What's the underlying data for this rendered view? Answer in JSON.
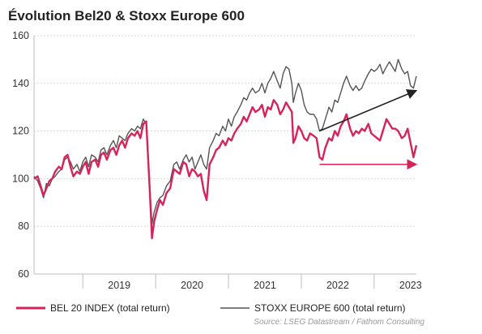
{
  "chart_data": {
    "type": "line",
    "title": "Évolution Bel20 & Stoxx Europe 600",
    "xlabel": "",
    "ylabel": "",
    "ylim": [
      60,
      160
    ],
    "yticks": [
      60,
      80,
      100,
      120,
      140,
      160
    ],
    "xlim": [
      2018.33,
      2023.58
    ],
    "xticks": [
      {
        "label": "2019",
        "x": 2019.0
      },
      {
        "label": "2020",
        "x": 2020.0
      },
      {
        "label": "2021",
        "x": 2021.0
      },
      {
        "label": "2022",
        "x": 2022.0
      },
      {
        "label": "2023",
        "x": 2023.0
      }
    ],
    "grid": true,
    "legend_position": "bottom",
    "source": "Source: LSEG Datastream / Fathom Consulting",
    "series": [
      {
        "name": "BEL 20 INDEX (total return)",
        "color": "#d6245a",
        "points": [
          [
            2018.33,
            100
          ],
          [
            2018.38,
            101
          ],
          [
            2018.42,
            97
          ],
          [
            2018.46,
            93
          ],
          [
            2018.5,
            96
          ],
          [
            2018.54,
            99
          ],
          [
            2018.58,
            100
          ],
          [
            2018.62,
            103
          ],
          [
            2018.67,
            105
          ],
          [
            2018.71,
            104
          ],
          [
            2018.75,
            109
          ],
          [
            2018.79,
            110
          ],
          [
            2018.83,
            105
          ],
          [
            2018.87,
            101
          ],
          [
            2018.92,
            103
          ],
          [
            2018.96,
            102
          ],
          [
            2019.0,
            105
          ],
          [
            2019.04,
            107
          ],
          [
            2019.08,
            102
          ],
          [
            2019.12,
            107
          ],
          [
            2019.17,
            108
          ],
          [
            2019.21,
            105
          ],
          [
            2019.25,
            110
          ],
          [
            2019.29,
            111
          ],
          [
            2019.33,
            108
          ],
          [
            2019.38,
            112
          ],
          [
            2019.42,
            113
          ],
          [
            2019.46,
            110
          ],
          [
            2019.5,
            114
          ],
          [
            2019.54,
            116
          ],
          [
            2019.58,
            113
          ],
          [
            2019.62,
            117
          ],
          [
            2019.67,
            119
          ],
          [
            2019.71,
            118
          ],
          [
            2019.75,
            120
          ],
          [
            2019.79,
            117
          ],
          [
            2019.83,
            123
          ],
          [
            2019.87,
            124
          ],
          [
            2019.89,
            112
          ],
          [
            2019.92,
            95
          ],
          [
            2019.95,
            75
          ],
          [
            2019.98,
            82
          ],
          [
            2020.02,
            87
          ],
          [
            2020.06,
            91
          ],
          [
            2020.1,
            89
          ],
          [
            2020.15,
            94
          ],
          [
            2020.2,
            96
          ],
          [
            2020.25,
            104
          ],
          [
            2020.29,
            103
          ],
          [
            2020.33,
            102
          ],
          [
            2020.38,
            107
          ],
          [
            2020.42,
            106
          ],
          [
            2020.46,
            101
          ],
          [
            2020.5,
            104
          ],
          [
            2020.54,
            103
          ],
          [
            2020.58,
            101
          ],
          [
            2020.62,
            102
          ],
          [
            2020.66,
            95
          ],
          [
            2020.7,
            91
          ],
          [
            2020.74,
            106
          ],
          [
            2020.79,
            109
          ],
          [
            2020.83,
            112
          ],
          [
            2020.87,
            113
          ],
          [
            2020.92,
            116
          ],
          [
            2020.96,
            114
          ],
          [
            2021.0,
            117
          ],
          [
            2021.04,
            116
          ],
          [
            2021.08,
            119
          ],
          [
            2021.12,
            121
          ],
          [
            2021.17,
            123
          ],
          [
            2021.21,
            126
          ],
          [
            2021.25,
            124
          ],
          [
            2021.29,
            127
          ],
          [
            2021.33,
            130
          ],
          [
            2021.37,
            128
          ],
          [
            2021.42,
            129
          ],
          [
            2021.46,
            131
          ],
          [
            2021.5,
            126
          ],
          [
            2021.54,
            130
          ],
          [
            2021.58,
            129
          ],
          [
            2021.62,
            133
          ],
          [
            2021.67,
            131
          ],
          [
            2021.71,
            127
          ],
          [
            2021.75,
            129
          ],
          [
            2021.79,
            132
          ],
          [
            2021.83,
            130
          ],
          [
            2021.87,
            128
          ],
          [
            2021.89,
            115
          ],
          [
            2021.92,
            117
          ],
          [
            2021.96,
            122
          ],
          [
            2022.0,
            120
          ],
          [
            2022.04,
            117
          ],
          [
            2022.08,
            116
          ],
          [
            2022.12,
            119
          ],
          [
            2022.17,
            118
          ],
          [
            2022.21,
            117
          ],
          [
            2022.25,
            109
          ],
          [
            2022.29,
            108
          ],
          [
            2022.33,
            113
          ],
          [
            2022.38,
            117
          ],
          [
            2022.42,
            116
          ],
          [
            2022.46,
            120
          ],
          [
            2022.5,
            118
          ],
          [
            2022.54,
            122
          ],
          [
            2022.58,
            124
          ],
          [
            2022.62,
            127
          ],
          [
            2022.67,
            121
          ],
          [
            2022.71,
            118
          ],
          [
            2022.75,
            120
          ],
          [
            2022.79,
            119
          ],
          [
            2022.83,
            121
          ],
          [
            2022.87,
            120
          ],
          [
            2022.92,
            123
          ],
          [
            2022.96,
            119
          ],
          [
            2023.0,
            118
          ],
          [
            2023.04,
            117
          ],
          [
            2023.08,
            116
          ],
          [
            2023.12,
            120
          ],
          [
            2023.17,
            125
          ],
          [
            2023.21,
            123
          ],
          [
            2023.25,
            121
          ],
          [
            2023.29,
            121
          ],
          [
            2023.33,
            120
          ],
          [
            2023.38,
            117
          ],
          [
            2023.42,
            118
          ],
          [
            2023.46,
            121
          ],
          [
            2023.5,
            115
          ],
          [
            2023.54,
            109
          ],
          [
            2023.58,
            114
          ]
        ]
      },
      {
        "name": "STOXX EUROPE 600 (total return)",
        "color": "#555555",
        "points": [
          [
            2018.33,
            101
          ],
          [
            2018.38,
            99
          ],
          [
            2018.42,
            96
          ],
          [
            2018.46,
            92
          ],
          [
            2018.5,
            98
          ],
          [
            2018.54,
            97
          ],
          [
            2018.58,
            100
          ],
          [
            2018.62,
            101
          ],
          [
            2018.67,
            103
          ],
          [
            2018.71,
            104
          ],
          [
            2018.75,
            108
          ],
          [
            2018.79,
            109
          ],
          [
            2018.83,
            107
          ],
          [
            2018.87,
            104
          ],
          [
            2018.92,
            106
          ],
          [
            2018.96,
            103
          ],
          [
            2019.0,
            107
          ],
          [
            2019.04,
            109
          ],
          [
            2019.08,
            105
          ],
          [
            2019.12,
            110
          ],
          [
            2019.17,
            109
          ],
          [
            2019.21,
            107
          ],
          [
            2019.25,
            112
          ],
          [
            2019.29,
            113
          ],
          [
            2019.33,
            110
          ],
          [
            2019.38,
            114
          ],
          [
            2019.42,
            116
          ],
          [
            2019.46,
            113
          ],
          [
            2019.5,
            118
          ],
          [
            2019.54,
            117
          ],
          [
            2019.58,
            116
          ],
          [
            2019.62,
            119
          ],
          [
            2019.67,
            121
          ],
          [
            2019.71,
            120
          ],
          [
            2019.75,
            122
          ],
          [
            2019.79,
            121
          ],
          [
            2019.83,
            125
          ],
          [
            2019.87,
            123
          ],
          [
            2019.89,
            114
          ],
          [
            2019.92,
            97
          ],
          [
            2019.95,
            81
          ],
          [
            2019.98,
            86
          ],
          [
            2020.02,
            90
          ],
          [
            2020.06,
            92
          ],
          [
            2020.1,
            93
          ],
          [
            2020.15,
            97
          ],
          [
            2020.2,
            99
          ],
          [
            2020.25,
            106
          ],
          [
            2020.29,
            107
          ],
          [
            2020.33,
            104
          ],
          [
            2020.38,
            108
          ],
          [
            2020.42,
            110
          ],
          [
            2020.46,
            107
          ],
          [
            2020.5,
            109
          ],
          [
            2020.54,
            104
          ],
          [
            2020.58,
            107
          ],
          [
            2020.62,
            110
          ],
          [
            2020.66,
            106
          ],
          [
            2020.7,
            104
          ],
          [
            2020.74,
            113
          ],
          [
            2020.79,
            116
          ],
          [
            2020.83,
            119
          ],
          [
            2020.87,
            118
          ],
          [
            2020.92,
            122
          ],
          [
            2020.96,
            120
          ],
          [
            2021.0,
            125
          ],
          [
            2021.04,
            122
          ],
          [
            2021.08,
            126
          ],
          [
            2021.12,
            128
          ],
          [
            2021.17,
            131
          ],
          [
            2021.21,
            134
          ],
          [
            2021.25,
            133
          ],
          [
            2021.29,
            136
          ],
          [
            2021.33,
            138
          ],
          [
            2021.37,
            136
          ],
          [
            2021.42,
            137
          ],
          [
            2021.46,
            140
          ],
          [
            2021.5,
            136
          ],
          [
            2021.54,
            140
          ],
          [
            2021.58,
            142
          ],
          [
            2021.62,
            145
          ],
          [
            2021.67,
            141
          ],
          [
            2021.71,
            138
          ],
          [
            2021.75,
            144
          ],
          [
            2021.79,
            147
          ],
          [
            2021.83,
            146
          ],
          [
            2021.87,
            140
          ],
          [
            2021.89,
            132
          ],
          [
            2021.92,
            136
          ],
          [
            2021.96,
            140
          ],
          [
            2022.0,
            137
          ],
          [
            2022.04,
            131
          ],
          [
            2022.08,
            128
          ],
          [
            2022.12,
            127
          ],
          [
            2022.17,
            127
          ],
          [
            2022.21,
            125
          ],
          [
            2022.25,
            120
          ],
          [
            2022.29,
            121
          ],
          [
            2022.33,
            125
          ],
          [
            2022.38,
            130
          ],
          [
            2022.42,
            128
          ],
          [
            2022.46,
            133
          ],
          [
            2022.5,
            132
          ],
          [
            2022.54,
            136
          ],
          [
            2022.58,
            140
          ],
          [
            2022.62,
            143
          ],
          [
            2022.67,
            139
          ],
          [
            2022.71,
            137
          ],
          [
            2022.75,
            139
          ],
          [
            2022.79,
            137
          ],
          [
            2022.83,
            138
          ],
          [
            2022.87,
            141
          ],
          [
            2022.92,
            144
          ],
          [
            2022.96,
            146
          ],
          [
            2023.0,
            145
          ],
          [
            2023.04,
            146
          ],
          [
            2023.08,
            148
          ],
          [
            2023.12,
            144
          ],
          [
            2023.17,
            147
          ],
          [
            2023.21,
            149
          ],
          [
            2023.25,
            147
          ],
          [
            2023.29,
            145
          ],
          [
            2023.33,
            150
          ],
          [
            2023.38,
            146
          ],
          [
            2023.42,
            144
          ],
          [
            2023.46,
            145
          ],
          [
            2023.5,
            139
          ],
          [
            2023.54,
            138
          ],
          [
            2023.58,
            143
          ]
        ]
      }
    ],
    "annotations": [
      {
        "type": "arrow",
        "color": "#222222",
        "from": [
          2022.25,
          120
        ],
        "to": [
          2023.58,
          137
        ]
      },
      {
        "type": "arrow",
        "color": "#d6245a",
        "from": [
          2022.25,
          106
        ],
        "to": [
          2023.58,
          106
        ]
      }
    ]
  }
}
